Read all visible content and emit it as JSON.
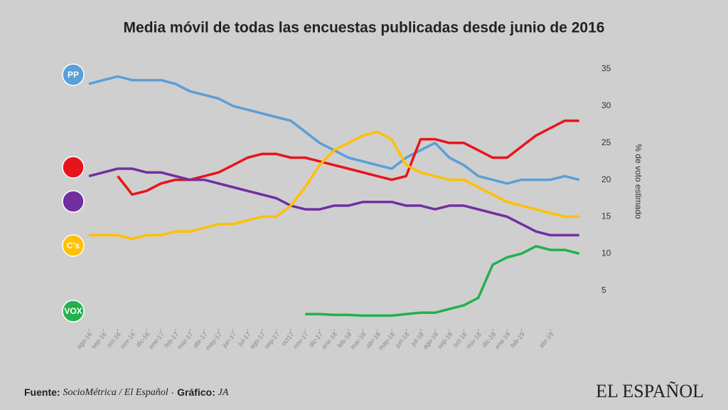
{
  "chart_data": {
    "type": "line",
    "title": "Media móvil de todas las encuestas publicadas desde junio de 2016",
    "y_label": "% de voto estimado",
    "x": [
      0,
      1,
      2,
      3,
      4,
      5,
      6,
      7,
      8,
      9,
      10,
      11,
      12,
      13,
      14,
      15,
      16,
      17,
      18,
      19,
      20,
      21,
      22,
      23,
      24,
      25,
      26,
      27,
      28,
      29,
      30,
      31,
      32,
      33,
      34
    ],
    "xlim": [
      0,
      35
    ],
    "xticks": [
      {
        "value": 0,
        "label": "ago-16"
      },
      {
        "value": 1,
        "label": "sep-16"
      },
      {
        "value": 2,
        "label": "oct-16"
      },
      {
        "value": 3,
        "label": "nov-16"
      },
      {
        "value": 4,
        "label": "dic-16"
      },
      {
        "value": 5,
        "label": "ene-17"
      },
      {
        "value": 6,
        "label": "feb-17"
      },
      {
        "value": 7,
        "label": "mar-17"
      },
      {
        "value": 8,
        "label": "abr-17"
      },
      {
        "value": 9,
        "label": "may-17"
      },
      {
        "value": 10,
        "label": "jun-17"
      },
      {
        "value": 11,
        "label": "jul-17"
      },
      {
        "value": 12,
        "label": "ago-17"
      },
      {
        "value": 13,
        "label": "sep-17"
      },
      {
        "value": 14,
        "label": "oct17"
      },
      {
        "value": 15,
        "label": "nov-17"
      },
      {
        "value": 16,
        "label": "dic-17"
      },
      {
        "value": 17,
        "label": "ene-18"
      },
      {
        "value": 18,
        "label": "feb-18"
      },
      {
        "value": 19,
        "label": "mar-18"
      },
      {
        "value": 20,
        "label": "abr-18"
      },
      {
        "value": 21,
        "label": "may-18"
      },
      {
        "value": 22,
        "label": "jun-18"
      },
      {
        "value": 23,
        "label": "jul-18"
      },
      {
        "value": 24,
        "label": "ago-18"
      },
      {
        "value": 25,
        "label": "sep-18"
      },
      {
        "value": 26,
        "label": "oct-18"
      },
      {
        "value": 27,
        "label": "nov-18"
      },
      {
        "value": 28,
        "label": "dic-18"
      },
      {
        "value": 29,
        "label": "ene-19"
      },
      {
        "value": 30,
        "label": "feb-19"
      },
      {
        "value": 32,
        "label": "abr-19"
      }
    ],
    "ylim": [
      0,
      36
    ],
    "yticks": [
      5,
      10,
      15,
      20,
      25,
      30,
      35
    ],
    "grid": false,
    "series": [
      {
        "name": "PP",
        "color": "#5a9fd8",
        "values": [
          33,
          33.5,
          34,
          33.5,
          33.5,
          33.5,
          33,
          32,
          31.5,
          31,
          30,
          29.5,
          29,
          28.5,
          28,
          26.5,
          25,
          24,
          23,
          22.5,
          22,
          21.5,
          23,
          24,
          25,
          23,
          22,
          20.5,
          20,
          19.5,
          20,
          20,
          20,
          20.5,
          20
        ]
      },
      {
        "color": "#e8141b",
        "values": [
          null,
          null,
          20.5,
          18,
          18.5,
          19.5,
          20,
          20,
          20.5,
          21,
          22,
          23,
          23.5,
          23.5,
          23,
          23,
          22.5,
          22,
          21.5,
          21,
          20.5,
          20,
          20.5,
          25.5,
          25.5,
          25,
          25,
          24,
          23,
          23,
          24.5,
          26,
          27,
          28,
          28
        ]
      },
      {
        "color": "#7030a0",
        "values": [
          20.5,
          21,
          21.5,
          21.5,
          21,
          21,
          20.5,
          20,
          20,
          19.5,
          19,
          18.5,
          18,
          17.5,
          16.5,
          16,
          16,
          16.5,
          16.5,
          17,
          17,
          17,
          16.5,
          16.5,
          16,
          16.5,
          16.5,
          16,
          15.5,
          15,
          14,
          13,
          12.5,
          12.5,
          12.5
        ]
      },
      {
        "name": "C's",
        "color": "#ffc000",
        "values": [
          12.5,
          12.5,
          12.5,
          12,
          12.5,
          12.5,
          13,
          13,
          13.5,
          14,
          14,
          14.5,
          15,
          15,
          16.5,
          19,
          22,
          24,
          25,
          26,
          26.5,
          25.5,
          22,
          21,
          20.5,
          20,
          20,
          19,
          18,
          17,
          16.5,
          16,
          15.5,
          15,
          15
        ]
      },
      {
        "name": "VOX",
        "color": "#22b14c",
        "values": [
          null,
          null,
          null,
          null,
          null,
          null,
          null,
          null,
          null,
          null,
          null,
          null,
          null,
          null,
          null,
          1.8,
          1.8,
          1.7,
          1.7,
          1.6,
          1.6,
          1.6,
          1.8,
          2,
          2,
          2.5,
          3,
          4,
          8.5,
          9.5,
          10,
          11,
          10.5,
          10.5,
          10
        ]
      }
    ]
  },
  "footer": {
    "source_label": "Fuente:",
    "source": "SocioMétrica / El Español",
    "separator": "·",
    "credit_label": "Gráfico:",
    "credit": "JA",
    "logo": "EL ESPAÑOL"
  }
}
